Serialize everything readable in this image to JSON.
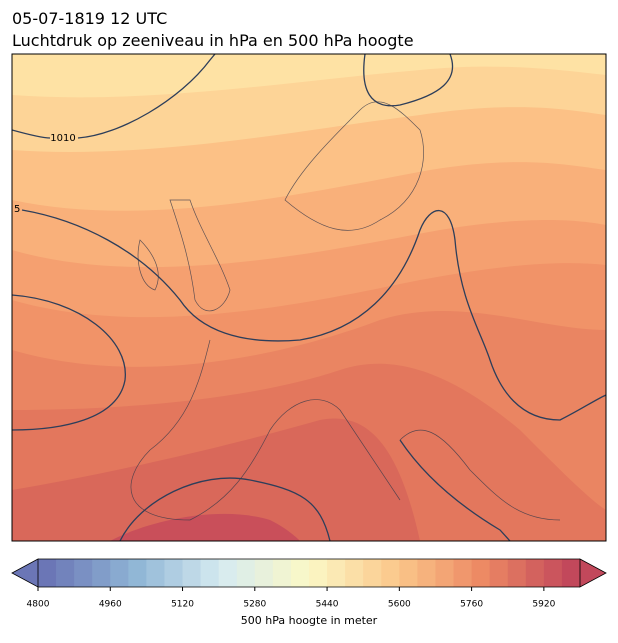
{
  "title": "05-07-1819 12 UTC",
  "subtitle": "Luchtdruk op zeeniveau in hPa en 500 hPa hoogte",
  "contour_labels": [
    "1010",
    "5"
  ],
  "colorbar": {
    "label": "500 hPa hoogte in meter",
    "lim": [
      4800,
      6000
    ],
    "step": 40,
    "ticks": [
      4800,
      4960,
      5120,
      5280,
      5440,
      5600,
      5760,
      5920
    ],
    "colormap": [
      "#6b76b6",
      "#8fb5d5",
      "#d6ebf1",
      "#fbf8c6",
      "#fbc88b",
      "#ec8863",
      "#c2485b"
    ]
  }
}
